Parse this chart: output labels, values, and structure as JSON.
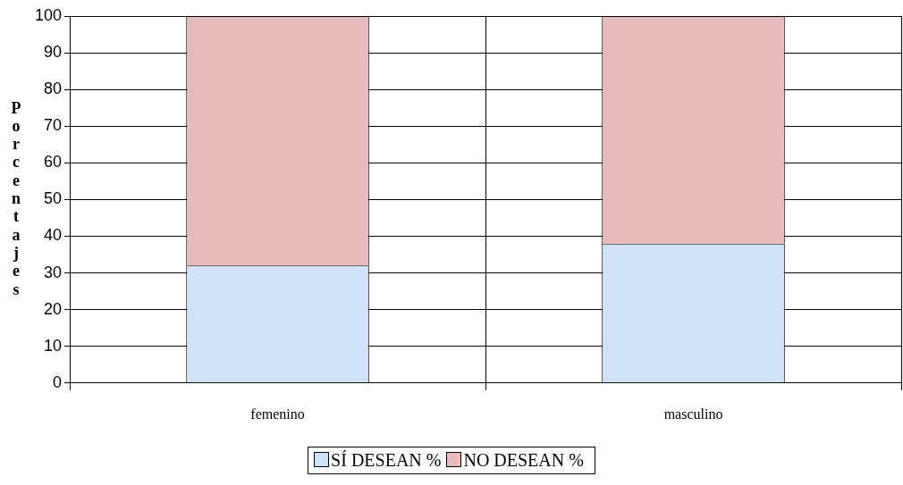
{
  "chart_data": {
    "type": "bar",
    "stacked": true,
    "ylabel": "Porcentajes",
    "categories": [
      "femenino",
      "masculino"
    ],
    "series": [
      {
        "name": "SÍ DESEAN %",
        "color": "#cfe2f8",
        "values": [
          32,
          38
        ]
      },
      {
        "name": "NO DESEAN %",
        "color": "#e6bcbc",
        "values": [
          68,
          62
        ]
      }
    ],
    "ylim": [
      0,
      100
    ],
    "yticks": [
      0,
      10,
      20,
      30,
      40,
      50,
      60,
      70,
      80,
      90,
      100
    ],
    "grid": true,
    "legend": "bottom"
  }
}
